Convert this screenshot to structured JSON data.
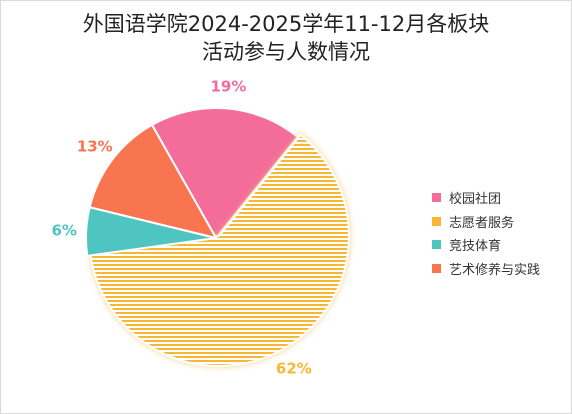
{
  "chart_data": {
    "type": "pie",
    "title_line1": "外国语学院2024-2025学年11-12月各板块",
    "title_line2": "活动参与人数情况",
    "slices": [
      {
        "name": "校园社团",
        "value": 19,
        "label": "19%",
        "color": "#f46d9a"
      },
      {
        "name": "志愿者服务",
        "value": 62,
        "label": "62%",
        "color": "#f7b733",
        "pattern": "horizontal-stripes",
        "exploded": true
      },
      {
        "name": "竞技体育",
        "value": 6,
        "label": "6%",
        "color": "#4ec5c1"
      },
      {
        "name": "艺术修养与实践",
        "value": 13,
        "label": "13%",
        "color": "#f97550"
      }
    ],
    "legend_position": "right"
  }
}
